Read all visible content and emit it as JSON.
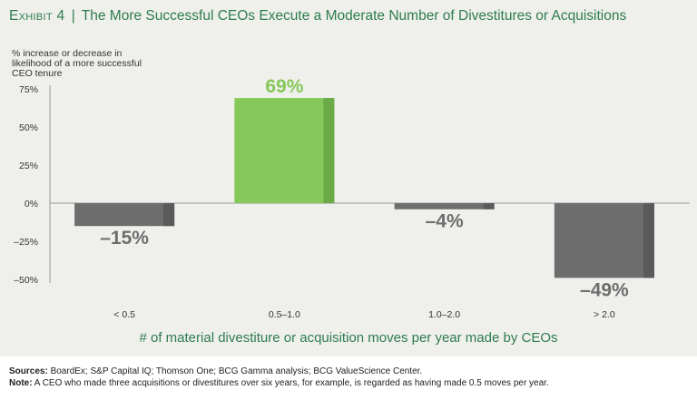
{
  "header": {
    "exhibit": "Exhibit 4",
    "separator": "|",
    "title": "The More Successful CEOs Execute a Moderate Number of Divestitures or Acquisitions"
  },
  "chart_data": {
    "type": "bar",
    "ylabel": "% increase or decrease in likelihood of a more successful CEO tenure",
    "xlabel": "# of material divestiture or acquisition moves per year made by CEOs",
    "categories": [
      "< 0.5",
      "0.5–1.0",
      "1.0–2.0",
      "> 2.0"
    ],
    "values": [
      -15,
      69,
      -4,
      -49
    ],
    "data_labels": [
      "–15%",
      "69%",
      "–4%",
      "–49%"
    ],
    "yticks": [
      75,
      50,
      25,
      0,
      -25,
      -50
    ],
    "ytick_labels": [
      "75%",
      "50%",
      "25%",
      "0%",
      "–25%",
      "–50%"
    ],
    "ylim": [
      -50,
      75
    ],
    "colors": {
      "negative": "#6d6d6d",
      "negative_shade": "#5a5a5a",
      "positive": "#86c85a",
      "positive_shade": "#6aaa48",
      "negative_label": "#6d6d6d",
      "positive_label": "#86c85a",
      "xlabel": "#2e7d4f"
    }
  },
  "footer": {
    "sources_label": "Sources:",
    "sources_text": "BoardEx; S&P Capital IQ; Thomson One; BCG Gamma analysis; BCG ValueScience Center.",
    "note_label": "Note:",
    "note_text": "A CEO who made three acquisitions or divestitures over six years, for example, is regarded as having made 0.5 moves per year."
  }
}
